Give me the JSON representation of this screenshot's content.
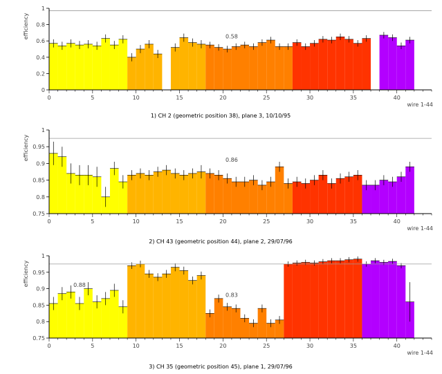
{
  "colors": {
    "group1": "#ffff00",
    "group2": "#ffb400",
    "group3": "#ff8000",
    "group4": "#ff3300",
    "group5": "#b300ff",
    "errorbar": "#000000",
    "ref_line": "#999999"
  },
  "chart_data": [
    {
      "type": "bar",
      "caption": "1) CH 2 (geometric position 38), plane 3, 10/10/95",
      "ylabel": "efficiency",
      "xlabel": "wire 1-44",
      "xlim": [
        0,
        44
      ],
      "ylim": [
        0,
        1
      ],
      "yticks": [
        0,
        0.2,
        0.4,
        0.6,
        0.8,
        1
      ],
      "ytick_labels": [
        "0",
        "0.2",
        "0.4",
        "0.6",
        "0.8",
        "1"
      ],
      "xticks": [
        0,
        5,
        10,
        15,
        20,
        25,
        30,
        35,
        40
      ],
      "xtick_labels": [
        "0",
        "5",
        "10",
        "15",
        "20",
        "25",
        "30",
        "35",
        "40"
      ],
      "ref_line": 0.97,
      "annotations": [
        {
          "text": "0.58",
          "x": 21,
          "y": 0.63
        }
      ],
      "bars": [
        {
          "wire": 1,
          "value": 0.57,
          "err": 0.05,
          "group": 1
        },
        {
          "wire": 2,
          "value": 0.54,
          "err": 0.05,
          "group": 1
        },
        {
          "wire": 3,
          "value": 0.57,
          "err": 0.05,
          "group": 1
        },
        {
          "wire": 4,
          "value": 0.55,
          "err": 0.05,
          "group": 1
        },
        {
          "wire": 5,
          "value": 0.56,
          "err": 0.05,
          "group": 1
        },
        {
          "wire": 6,
          "value": 0.54,
          "err": 0.05,
          "group": 1
        },
        {
          "wire": 7,
          "value": 0.63,
          "err": 0.05,
          "group": 1
        },
        {
          "wire": 8,
          "value": 0.55,
          "err": 0.05,
          "group": 1
        },
        {
          "wire": 9,
          "value": 0.62,
          "err": 0.05,
          "group": 1
        },
        {
          "wire": 10,
          "value": 0.4,
          "err": 0.05,
          "group": 2
        },
        {
          "wire": 11,
          "value": 0.5,
          "err": 0.05,
          "group": 2
        },
        {
          "wire": 12,
          "value": 0.56,
          "err": 0.05,
          "group": 2
        },
        {
          "wire": 13,
          "value": 0.44,
          "err": 0.05,
          "group": 2
        },
        {
          "wire": 15,
          "value": 0.52,
          "err": 0.05,
          "group": 2
        },
        {
          "wire": 16,
          "value": 0.64,
          "err": 0.05,
          "group": 2
        },
        {
          "wire": 17,
          "value": 0.58,
          "err": 0.05,
          "group": 2
        },
        {
          "wire": 18,
          "value": 0.56,
          "err": 0.05,
          "group": 2
        },
        {
          "wire": 19,
          "value": 0.55,
          "err": 0.04,
          "group": 3
        },
        {
          "wire": 20,
          "value": 0.52,
          "err": 0.04,
          "group": 3
        },
        {
          "wire": 21,
          "value": 0.5,
          "err": 0.04,
          "group": 3
        },
        {
          "wire": 22,
          "value": 0.53,
          "err": 0.04,
          "group": 3
        },
        {
          "wire": 23,
          "value": 0.55,
          "err": 0.04,
          "group": 3
        },
        {
          "wire": 24,
          "value": 0.53,
          "err": 0.04,
          "group": 3
        },
        {
          "wire": 25,
          "value": 0.58,
          "err": 0.04,
          "group": 3
        },
        {
          "wire": 26,
          "value": 0.61,
          "err": 0.04,
          "group": 3
        },
        {
          "wire": 27,
          "value": 0.53,
          "err": 0.04,
          "group": 3
        },
        {
          "wire": 28,
          "value": 0.53,
          "err": 0.04,
          "group": 3
        },
        {
          "wire": 29,
          "value": 0.58,
          "err": 0.04,
          "group": 4
        },
        {
          "wire": 30,
          "value": 0.53,
          "err": 0.04,
          "group": 4
        },
        {
          "wire": 31,
          "value": 0.57,
          "err": 0.04,
          "group": 4
        },
        {
          "wire": 32,
          "value": 0.62,
          "err": 0.04,
          "group": 4
        },
        {
          "wire": 33,
          "value": 0.61,
          "err": 0.04,
          "group": 4
        },
        {
          "wire": 34,
          "value": 0.65,
          "err": 0.04,
          "group": 4
        },
        {
          "wire": 35,
          "value": 0.62,
          "err": 0.04,
          "group": 4
        },
        {
          "wire": 36,
          "value": 0.57,
          "err": 0.04,
          "group": 4
        },
        {
          "wire": 37,
          "value": 0.63,
          "err": 0.04,
          "group": 4
        },
        {
          "wire": 39,
          "value": 0.67,
          "err": 0.04,
          "group": 5
        },
        {
          "wire": 40,
          "value": 0.64,
          "err": 0.04,
          "group": 5
        },
        {
          "wire": 41,
          "value": 0.54,
          "err": 0.04,
          "group": 5
        },
        {
          "wire": 42,
          "value": 0.61,
          "err": 0.04,
          "group": 5
        }
      ]
    },
    {
      "type": "bar",
      "caption": "2) CH 43 (geometric position 44), plane 2, 29/07/96",
      "ylabel": "efficiency",
      "xlabel": "wire 1-44",
      "xlim": [
        0,
        44
      ],
      "ylim": [
        0.75,
        1
      ],
      "yticks": [
        0.75,
        0.8,
        0.85,
        0.9,
        0.95,
        1
      ],
      "ytick_labels": [
        "0.75",
        "0.8",
        "0.85",
        "0.9",
        "0.95",
        "1"
      ],
      "xticks": [
        0,
        5,
        10,
        15,
        20,
        25,
        30,
        35,
        40
      ],
      "xtick_labels": [
        "0",
        "5",
        "10",
        "15",
        "20",
        "25",
        "30",
        "35",
        "40"
      ],
      "ref_line": 0.975,
      "annotations": [
        {
          "text": "0.86",
          "x": 21,
          "y": 0.905
        }
      ],
      "bars": [
        {
          "wire": 1,
          "value": 0.93,
          "err": 0.035,
          "group": 1
        },
        {
          "wire": 2,
          "value": 0.92,
          "err": 0.03,
          "group": 1
        },
        {
          "wire": 3,
          "value": 0.87,
          "err": 0.03,
          "group": 1
        },
        {
          "wire": 4,
          "value": 0.865,
          "err": 0.03,
          "group": 1
        },
        {
          "wire": 5,
          "value": 0.865,
          "err": 0.03,
          "group": 1
        },
        {
          "wire": 6,
          "value": 0.86,
          "err": 0.03,
          "group": 1
        },
        {
          "wire": 7,
          "value": 0.8,
          "err": 0.03,
          "group": 1
        },
        {
          "wire": 8,
          "value": 0.885,
          "err": 0.02,
          "group": 1
        },
        {
          "wire": 9,
          "value": 0.845,
          "err": 0.02,
          "group": 1
        },
        {
          "wire": 10,
          "value": 0.865,
          "err": 0.015,
          "group": 2
        },
        {
          "wire": 11,
          "value": 0.87,
          "err": 0.015,
          "group": 2
        },
        {
          "wire": 12,
          "value": 0.865,
          "err": 0.015,
          "group": 2
        },
        {
          "wire": 13,
          "value": 0.875,
          "err": 0.015,
          "group": 2
        },
        {
          "wire": 14,
          "value": 0.88,
          "err": 0.015,
          "group": 2
        },
        {
          "wire": 15,
          "value": 0.87,
          "err": 0.015,
          "group": 2
        },
        {
          "wire": 16,
          "value": 0.865,
          "err": 0.015,
          "group": 2
        },
        {
          "wire": 17,
          "value": 0.87,
          "err": 0.015,
          "group": 2
        },
        {
          "wire": 18,
          "value": 0.875,
          "err": 0.02,
          "group": 2
        },
        {
          "wire": 19,
          "value": 0.87,
          "err": 0.015,
          "group": 3
        },
        {
          "wire": 20,
          "value": 0.865,
          "err": 0.015,
          "group": 3
        },
        {
          "wire": 21,
          "value": 0.855,
          "err": 0.015,
          "group": 3
        },
        {
          "wire": 22,
          "value": 0.845,
          "err": 0.015,
          "group": 3
        },
        {
          "wire": 23,
          "value": 0.845,
          "err": 0.015,
          "group": 3
        },
        {
          "wire": 24,
          "value": 0.85,
          "err": 0.015,
          "group": 3
        },
        {
          "wire": 25,
          "value": 0.835,
          "err": 0.015,
          "group": 3
        },
        {
          "wire": 26,
          "value": 0.845,
          "err": 0.015,
          "group": 3
        },
        {
          "wire": 27,
          "value": 0.89,
          "err": 0.015,
          "group": 3
        },
        {
          "wire": 28,
          "value": 0.84,
          "err": 0.015,
          "group": 3
        },
        {
          "wire": 29,
          "value": 0.845,
          "err": 0.015,
          "group": 4
        },
        {
          "wire": 30,
          "value": 0.84,
          "err": 0.015,
          "group": 4
        },
        {
          "wire": 31,
          "value": 0.85,
          "err": 0.015,
          "group": 4
        },
        {
          "wire": 32,
          "value": 0.865,
          "err": 0.015,
          "group": 4
        },
        {
          "wire": 33,
          "value": 0.84,
          "err": 0.015,
          "group": 4
        },
        {
          "wire": 34,
          "value": 0.855,
          "err": 0.015,
          "group": 4
        },
        {
          "wire": 35,
          "value": 0.86,
          "err": 0.015,
          "group": 4
        },
        {
          "wire": 36,
          "value": 0.865,
          "err": 0.015,
          "group": 4
        },
        {
          "wire": 37,
          "value": 0.835,
          "err": 0.015,
          "group": 5
        },
        {
          "wire": 38,
          "value": 0.835,
          "err": 0.015,
          "group": 5
        },
        {
          "wire": 39,
          "value": 0.85,
          "err": 0.015,
          "group": 5
        },
        {
          "wire": 40,
          "value": 0.845,
          "err": 0.015,
          "group": 5
        },
        {
          "wire": 41,
          "value": 0.86,
          "err": 0.015,
          "group": 5
        },
        {
          "wire": 42,
          "value": 0.89,
          "err": 0.015,
          "group": 5
        }
      ]
    },
    {
      "type": "bar",
      "caption": "3) CH 35 (geometric position 45), plane 1, 29/07/96",
      "ylabel": "efficiency",
      "xlabel": "wire 1-44",
      "xlim": [
        0,
        44
      ],
      "ylim": [
        0.75,
        1
      ],
      "yticks": [
        0.75,
        0.8,
        0.85,
        0.9,
        0.95,
        1
      ],
      "ytick_labels": [
        "0.75",
        "0.8",
        "0.85",
        "0.9",
        "0.95",
        "1"
      ],
      "xticks": [
        0,
        5,
        10,
        15,
        20,
        25,
        30,
        35,
        40
      ],
      "xtick_labels": [
        "0",
        "5",
        "10",
        "15",
        "20",
        "25",
        "30",
        "35",
        "40"
      ],
      "ref_line": 0.975,
      "annotations": [
        {
          "text": "0.88",
          "x": 3.5,
          "y": 0.905
        },
        {
          "text": "0.83",
          "x": 21,
          "y": 0.875
        }
      ],
      "bars": [
        {
          "wire": 1,
          "value": 0.855,
          "err": 0.02,
          "group": 1
        },
        {
          "wire": 2,
          "value": 0.885,
          "err": 0.02,
          "group": 1
        },
        {
          "wire": 3,
          "value": 0.89,
          "err": 0.02,
          "group": 1
        },
        {
          "wire": 4,
          "value": 0.855,
          "err": 0.02,
          "group": 1
        },
        {
          "wire": 5,
          "value": 0.9,
          "err": 0.02,
          "group": 1
        },
        {
          "wire": 6,
          "value": 0.86,
          "err": 0.02,
          "group": 1
        },
        {
          "wire": 7,
          "value": 0.87,
          "err": 0.02,
          "group": 1
        },
        {
          "wire": 8,
          "value": 0.895,
          "err": 0.02,
          "group": 1
        },
        {
          "wire": 9,
          "value": 0.845,
          "err": 0.02,
          "group": 1
        },
        {
          "wire": 10,
          "value": 0.97,
          "err": 0.01,
          "group": 2
        },
        {
          "wire": 11,
          "value": 0.975,
          "err": 0.01,
          "group": 2
        },
        {
          "wire": 12,
          "value": 0.945,
          "err": 0.012,
          "group": 2
        },
        {
          "wire": 13,
          "value": 0.935,
          "err": 0.012,
          "group": 2
        },
        {
          "wire": 14,
          "value": 0.945,
          "err": 0.012,
          "group": 2
        },
        {
          "wire": 15,
          "value": 0.965,
          "err": 0.012,
          "group": 2
        },
        {
          "wire": 16,
          "value": 0.955,
          "err": 0.012,
          "group": 2
        },
        {
          "wire": 17,
          "value": 0.925,
          "err": 0.012,
          "group": 2
        },
        {
          "wire": 18,
          "value": 0.94,
          "err": 0.012,
          "group": 2
        },
        {
          "wire": 19,
          "value": 0.825,
          "err": 0.012,
          "group": 3
        },
        {
          "wire": 20,
          "value": 0.87,
          "err": 0.012,
          "group": 3
        },
        {
          "wire": 21,
          "value": 0.845,
          "err": 0.012,
          "group": 3
        },
        {
          "wire": 22,
          "value": 0.84,
          "err": 0.012,
          "group": 3
        },
        {
          "wire": 23,
          "value": 0.81,
          "err": 0.012,
          "group": 3
        },
        {
          "wire": 24,
          "value": 0.795,
          "err": 0.012,
          "group": 3
        },
        {
          "wire": 25,
          "value": 0.84,
          "err": 0.012,
          "group": 3
        },
        {
          "wire": 26,
          "value": 0.795,
          "err": 0.012,
          "group": 3
        },
        {
          "wire": 27,
          "value": 0.805,
          "err": 0.012,
          "group": 3
        },
        {
          "wire": 28,
          "value": 0.975,
          "err": 0.008,
          "group": 4
        },
        {
          "wire": 29,
          "value": 0.978,
          "err": 0.008,
          "group": 4
        },
        {
          "wire": 30,
          "value": 0.98,
          "err": 0.008,
          "group": 4
        },
        {
          "wire": 31,
          "value": 0.978,
          "err": 0.008,
          "group": 4
        },
        {
          "wire": 32,
          "value": 0.982,
          "err": 0.008,
          "group": 4
        },
        {
          "wire": 33,
          "value": 0.985,
          "err": 0.008,
          "group": 4
        },
        {
          "wire": 34,
          "value": 0.985,
          "err": 0.008,
          "group": 4
        },
        {
          "wire": 35,
          "value": 0.988,
          "err": 0.008,
          "group": 4
        },
        {
          "wire": 36,
          "value": 0.99,
          "err": 0.008,
          "group": 4
        },
        {
          "wire": 37,
          "value": 0.975,
          "err": 0.008,
          "group": 5
        },
        {
          "wire": 38,
          "value": 0.985,
          "err": 0.008,
          "group": 5
        },
        {
          "wire": 39,
          "value": 0.98,
          "err": 0.008,
          "group": 5
        },
        {
          "wire": 40,
          "value": 0.983,
          "err": 0.008,
          "group": 5
        },
        {
          "wire": 41,
          "value": 0.97,
          "err": 0.008,
          "group": 5
        },
        {
          "wire": 42,
          "value": 0.86,
          "err": 0.06,
          "group": 5
        }
      ]
    }
  ]
}
